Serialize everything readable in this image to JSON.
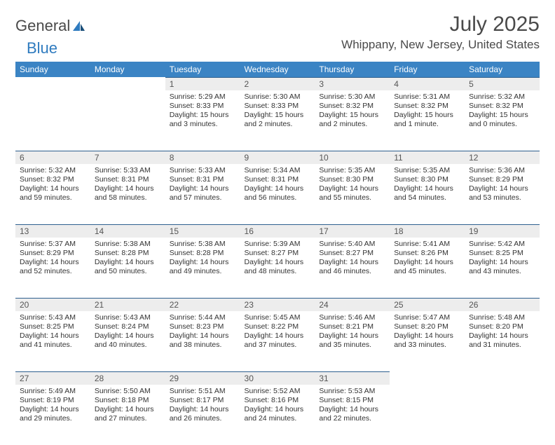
{
  "logo": {
    "part1": "General",
    "part2": "Blue"
  },
  "title": "July 2025",
  "location": "Whippany, New Jersey, United States",
  "header_bg": "#3b84c4",
  "daynum_bg": "#ededed",
  "border_color": "#2d5f8e",
  "dow": [
    "Sunday",
    "Monday",
    "Tuesday",
    "Wednesday",
    "Thursday",
    "Friday",
    "Saturday"
  ],
  "weeks": [
    [
      null,
      null,
      {
        "n": "1",
        "sunrise": "5:29 AM",
        "sunset": "8:33 PM",
        "daylight": "15 hours and 3 minutes."
      },
      {
        "n": "2",
        "sunrise": "5:30 AM",
        "sunset": "8:33 PM",
        "daylight": "15 hours and 2 minutes."
      },
      {
        "n": "3",
        "sunrise": "5:30 AM",
        "sunset": "8:32 PM",
        "daylight": "15 hours and 2 minutes."
      },
      {
        "n": "4",
        "sunrise": "5:31 AM",
        "sunset": "8:32 PM",
        "daylight": "15 hours and 1 minute."
      },
      {
        "n": "5",
        "sunrise": "5:32 AM",
        "sunset": "8:32 PM",
        "daylight": "15 hours and 0 minutes."
      }
    ],
    [
      {
        "n": "6",
        "sunrise": "5:32 AM",
        "sunset": "8:32 PM",
        "daylight": "14 hours and 59 minutes."
      },
      {
        "n": "7",
        "sunrise": "5:33 AM",
        "sunset": "8:31 PM",
        "daylight": "14 hours and 58 minutes."
      },
      {
        "n": "8",
        "sunrise": "5:33 AM",
        "sunset": "8:31 PM",
        "daylight": "14 hours and 57 minutes."
      },
      {
        "n": "9",
        "sunrise": "5:34 AM",
        "sunset": "8:31 PM",
        "daylight": "14 hours and 56 minutes."
      },
      {
        "n": "10",
        "sunrise": "5:35 AM",
        "sunset": "8:30 PM",
        "daylight": "14 hours and 55 minutes."
      },
      {
        "n": "11",
        "sunrise": "5:35 AM",
        "sunset": "8:30 PM",
        "daylight": "14 hours and 54 minutes."
      },
      {
        "n": "12",
        "sunrise": "5:36 AM",
        "sunset": "8:29 PM",
        "daylight": "14 hours and 53 minutes."
      }
    ],
    [
      {
        "n": "13",
        "sunrise": "5:37 AM",
        "sunset": "8:29 PM",
        "daylight": "14 hours and 52 minutes."
      },
      {
        "n": "14",
        "sunrise": "5:38 AM",
        "sunset": "8:28 PM",
        "daylight": "14 hours and 50 minutes."
      },
      {
        "n": "15",
        "sunrise": "5:38 AM",
        "sunset": "8:28 PM",
        "daylight": "14 hours and 49 minutes."
      },
      {
        "n": "16",
        "sunrise": "5:39 AM",
        "sunset": "8:27 PM",
        "daylight": "14 hours and 48 minutes."
      },
      {
        "n": "17",
        "sunrise": "5:40 AM",
        "sunset": "8:27 PM",
        "daylight": "14 hours and 46 minutes."
      },
      {
        "n": "18",
        "sunrise": "5:41 AM",
        "sunset": "8:26 PM",
        "daylight": "14 hours and 45 minutes."
      },
      {
        "n": "19",
        "sunrise": "5:42 AM",
        "sunset": "8:25 PM",
        "daylight": "14 hours and 43 minutes."
      }
    ],
    [
      {
        "n": "20",
        "sunrise": "5:43 AM",
        "sunset": "8:25 PM",
        "daylight": "14 hours and 41 minutes."
      },
      {
        "n": "21",
        "sunrise": "5:43 AM",
        "sunset": "8:24 PM",
        "daylight": "14 hours and 40 minutes."
      },
      {
        "n": "22",
        "sunrise": "5:44 AM",
        "sunset": "8:23 PM",
        "daylight": "14 hours and 38 minutes."
      },
      {
        "n": "23",
        "sunrise": "5:45 AM",
        "sunset": "8:22 PM",
        "daylight": "14 hours and 37 minutes."
      },
      {
        "n": "24",
        "sunrise": "5:46 AM",
        "sunset": "8:21 PM",
        "daylight": "14 hours and 35 minutes."
      },
      {
        "n": "25",
        "sunrise": "5:47 AM",
        "sunset": "8:20 PM",
        "daylight": "14 hours and 33 minutes."
      },
      {
        "n": "26",
        "sunrise": "5:48 AM",
        "sunset": "8:20 PM",
        "daylight": "14 hours and 31 minutes."
      }
    ],
    [
      {
        "n": "27",
        "sunrise": "5:49 AM",
        "sunset": "8:19 PM",
        "daylight": "14 hours and 29 minutes."
      },
      {
        "n": "28",
        "sunrise": "5:50 AM",
        "sunset": "8:18 PM",
        "daylight": "14 hours and 27 minutes."
      },
      {
        "n": "29",
        "sunrise": "5:51 AM",
        "sunset": "8:17 PM",
        "daylight": "14 hours and 26 minutes."
      },
      {
        "n": "30",
        "sunrise": "5:52 AM",
        "sunset": "8:16 PM",
        "daylight": "14 hours and 24 minutes."
      },
      {
        "n": "31",
        "sunrise": "5:53 AM",
        "sunset": "8:15 PM",
        "daylight": "14 hours and 22 minutes."
      },
      null,
      null
    ]
  ],
  "labels": {
    "sunrise": "Sunrise: ",
    "sunset": "Sunset: ",
    "daylight": "Daylight: "
  }
}
